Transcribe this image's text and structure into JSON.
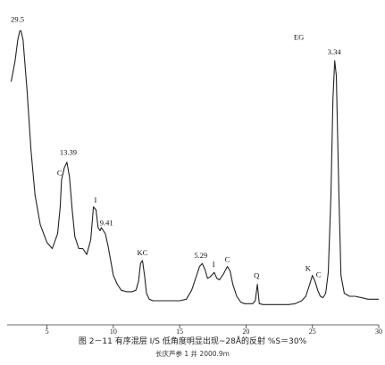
{
  "chart_data": {
    "type": "line",
    "title": "",
    "xlabel": "",
    "ylabel": "",
    "xlim": [
      2,
      30
    ],
    "ylim": [
      0,
      100
    ],
    "grid": false,
    "x_ticks": [
      5,
      10,
      15,
      20,
      25,
      30
    ],
    "series": [
      {
        "color": "#222222",
        "x": [
          2.3,
          2.6,
          2.8,
          2.95,
          3.05,
          3.2,
          3.5,
          3.8,
          4.1,
          4.5,
          5.0,
          5.4,
          5.8,
          6.0,
          6.1,
          6.3,
          6.5,
          6.7,
          6.9,
          7.1,
          7.4,
          7.7,
          8.0,
          8.3,
          8.5,
          8.7,
          8.85,
          9.0,
          9.1,
          9.25,
          9.4,
          9.6,
          9.8,
          10.0,
          10.3,
          10.6,
          11.0,
          11.4,
          11.7,
          11.9,
          12.05,
          12.2,
          12.35,
          12.5,
          12.7,
          13.0,
          13.5,
          14.0,
          14.5,
          15.0,
          15.5,
          15.9,
          16.2,
          16.5,
          16.7,
          16.9,
          17.1,
          17.3,
          17.6,
          17.8,
          18.0,
          18.3,
          18.6,
          18.8,
          19.0,
          19.3,
          19.6,
          19.9,
          20.2,
          20.5,
          20.7,
          20.85,
          21.0,
          21.3,
          21.7,
          22.2,
          22.7,
          23.2,
          23.7,
          24.2,
          24.5,
          24.8,
          25.0,
          25.2,
          25.4,
          25.6,
          25.8,
          26.0,
          26.2,
          26.4,
          26.55,
          26.68,
          26.8,
          27.0,
          27.15,
          27.4,
          27.8,
          28.2,
          28.7,
          29.2,
          29.7,
          30.0
        ],
        "y": [
          78,
          85,
          92,
          95,
          95,
          92,
          75,
          55,
          40,
          30,
          24,
          22,
          27,
          36,
          45,
          49,
          51,
          46,
          35,
          26,
          22,
          22,
          20,
          25,
          36,
          35,
          29,
          28,
          29,
          28,
          27,
          23,
          18,
          13,
          10,
          8,
          7.5,
          7.5,
          8,
          11,
          17,
          18,
          13,
          7,
          5,
          4.5,
          4.5,
          4.5,
          4.5,
          4.5,
          5,
          8,
          12,
          16,
          17,
          15,
          12,
          12.5,
          14,
          12,
          11.5,
          13.5,
          16,
          14.5,
          10,
          6,
          4,
          3.5,
          3.5,
          3.5,
          4.5,
          10,
          3.5,
          3.2,
          3.2,
          3.2,
          3.2,
          3.2,
          3.5,
          4.5,
          6,
          10,
          13,
          11,
          8,
          6,
          5.5,
          7,
          14,
          40,
          72,
          85,
          80,
          40,
          13,
          7,
          6,
          6,
          5.5,
          5,
          5,
          5
        ]
      }
    ],
    "annotations": [
      {
        "text": "29.5",
        "x": 2.95,
        "y": 95,
        "dx": -10,
        "dy": -10
      },
      {
        "text": "13.39",
        "x": 6.5,
        "y": 51,
        "dx": -8,
        "dy": -8
      },
      {
        "text": "C",
        "x": 6.1,
        "y": 45,
        "dx": -5,
        "dy": -5
      },
      {
        "text": "I",
        "x": 8.7,
        "y": 36,
        "dx": -2,
        "dy": -5
      },
      {
        "text": "9.41",
        "x": 9.25,
        "y": 28,
        "dx": -4,
        "dy": -6
      },
      {
        "text": "KC",
        "x": 12.2,
        "y": 18,
        "dx": -6,
        "dy": -6
      },
      {
        "text": "5.29",
        "x": 16.7,
        "y": 17,
        "dx": -9,
        "dy": -6
      },
      {
        "text": "I",
        "x": 17.6,
        "y": 14,
        "dx": -2,
        "dy": -6
      },
      {
        "text": "C",
        "x": 18.6,
        "y": 16,
        "dx": -3,
        "dy": -5
      },
      {
        "text": "Q",
        "x": 20.85,
        "y": 10,
        "dx": -4,
        "dy": -7
      },
      {
        "text": "K",
        "x": 24.8,
        "y": 13,
        "dx": -5,
        "dy": -5
      },
      {
        "text": "C",
        "x": 25.2,
        "y": 11,
        "dx": 1,
        "dy": -5
      },
      {
        "text": "EG",
        "x": 23.6,
        "y": 92,
        "dx": 0,
        "dy": 0
      },
      {
        "text": "3.34",
        "x": 26.68,
        "y": 85,
        "dx": -8,
        "dy": -7
      }
    ]
  },
  "caption": {
    "line1": "图 2－11   有序混层 I/S   低角度明显出现~28Å的反射   %S＝30%",
    "line2": "长庆芦参 1 井     2000.9m"
  }
}
